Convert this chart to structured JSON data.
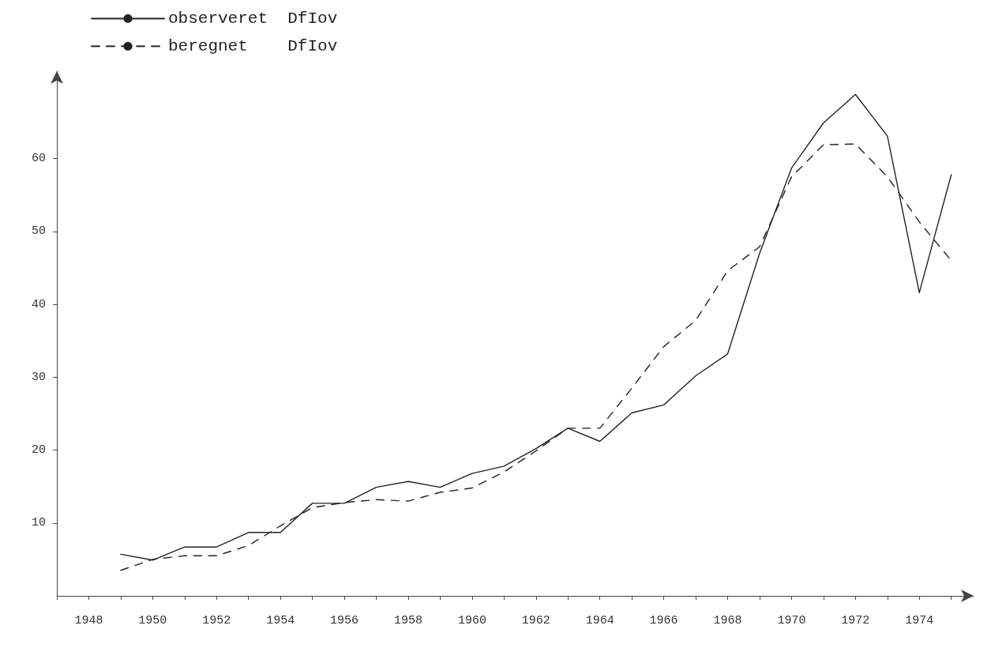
{
  "chart_data": {
    "type": "line",
    "x": [
      1949,
      1950,
      1951,
      1952,
      1953,
      1954,
      1955,
      1956,
      1957,
      1958,
      1959,
      1960,
      1961,
      1962,
      1963,
      1964,
      1965,
      1966,
      1967,
      1968,
      1969,
      1970,
      1971,
      1972,
      1973,
      1974,
      1975
    ],
    "series": [
      {
        "name": "observeret  DfIov",
        "color": "#222222",
        "line_style": "solid",
        "values": [
          5.7,
          4.9,
          6.7,
          6.7,
          8.7,
          8.7,
          12.7,
          12.7,
          14.9,
          15.7,
          14.9,
          16.8,
          17.8,
          20.2,
          23,
          21.2,
          25.1,
          26.2,
          30.2,
          33.2,
          47,
          58.7,
          64.9,
          68.8,
          63.1,
          41.6,
          57.8
        ]
      },
      {
        "name": "beregnet    DfIov",
        "color": "#222222",
        "line_style": "dashed",
        "values": [
          3.5,
          5,
          5.5,
          5.5,
          6.9,
          9.6,
          12.1,
          12.8,
          13.2,
          13,
          14.2,
          14.8,
          17,
          19.9,
          23,
          23,
          28.5,
          34.2,
          37.8,
          44.6,
          47.9,
          57.5,
          61.9,
          62,
          57.5,
          51.3,
          46
        ]
      }
    ],
    "xlim": [
      1947,
      1975.7
    ],
    "xticks": [
      {
        "value": 1947,
        "label": null
      },
      1948,
      {
        "value": 1949,
        "label": null
      },
      1950,
      {
        "value": 1951,
        "label": null
      },
      1952,
      {
        "value": 1953,
        "label": null
      },
      1954,
      {
        "value": 1955,
        "label": null
      },
      1956,
      {
        "value": 1957,
        "label": null
      },
      1958,
      {
        "value": 1959,
        "label": null
      },
      1960,
      {
        "value": 1961,
        "label": null
      },
      1962,
      {
        "value": 1963,
        "label": null
      },
      1964,
      {
        "value": 1965,
        "label": null
      },
      1966,
      {
        "value": 1967,
        "label": null
      },
      1968,
      {
        "value": 1969,
        "label": null
      },
      1970,
      {
        "value": 1971,
        "label": null
      },
      1972,
      {
        "value": 1973,
        "label": null
      },
      1974,
      {
        "value": 1975,
        "label": null
      }
    ],
    "ylim": [
      0,
      72
    ],
    "yticks": [
      10,
      20,
      30,
      40,
      50,
      60
    ],
    "grid": false,
    "legend": "top left",
    "marker": "none"
  }
}
